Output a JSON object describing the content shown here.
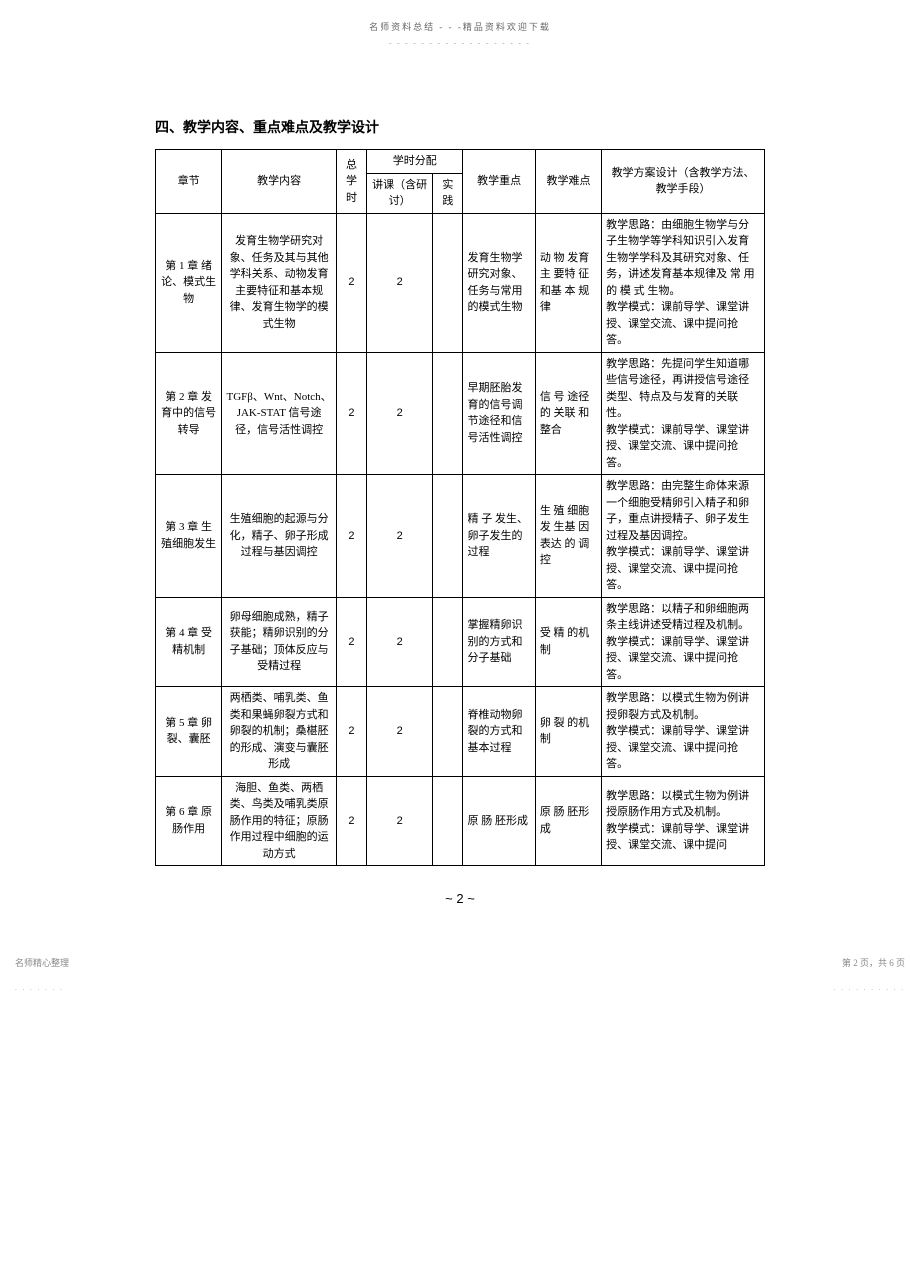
{
  "header": {
    "text": "名师资料总结 - - -精品资料欢迎下载",
    "dots": "- - - - - - - - - - - - - - - - - -"
  },
  "section_title": "四、教学内容、重点难点及教学设计",
  "table": {
    "headers": {
      "chapter": "章节",
      "content": "教学内容",
      "total_hours": "总学时",
      "hour_allocation": "学时分配",
      "lecture": "讲课（含研讨）",
      "practice": "实践",
      "focus": "教学重点",
      "difficulty": "教学难点",
      "design": "教学方案设计（含教学方法、教学手段）"
    },
    "rows": [
      {
        "chapter": "第 1 章 绪论、模式生物",
        "content": "发育生物学研究对象、任务及其与其他学科关系、动物发育主要特征和基本规律、发育生物学的模式生物",
        "total": "2",
        "lecture": "2",
        "practice": "",
        "focus": "发育生物学研究对象、任务与常用的模式生物",
        "difficulty": "动 物 发育 主 要特 征 和基 本 规律",
        "design": "教学思路：由细胞生物学与分子生物学等学科知识引入发育生物学学科及其研究对象、任务，讲述发育基本规律及 常 用 的 模 式 生物。\n教学模式：课前导学、课堂讲授、课堂交流、课中提问抢答。"
      },
      {
        "chapter": "第 2 章 发育中的信号转导",
        "content": "TGFβ、Wnt、Notch、JAK-STAT 信号途径，信号活性调控",
        "total": "2",
        "lecture": "2",
        "practice": "",
        "focus": "早期胚胎发育的信号调节途径和信号活性调控",
        "difficulty": "信 号 途径 的 关联 和 整合",
        "design": "教学思路：先提问学生知道哪些信号途径，再讲授信号途径类型、特点及与发育的关联性。\n教学模式：课前导学、课堂讲授、课堂交流、课中提问抢答。"
      },
      {
        "chapter": "第 3 章 生殖细胞发生",
        "content": "生殖细胞的起源与分化，精子、卵子形成过程与基因调控",
        "total": "2",
        "lecture": "2",
        "practice": "",
        "focus": "精 子 发生、卵子发生的过程",
        "difficulty": "生 殖 细胞 发 生基 因表达 的 调控",
        "design": "教学思路：由完整生命体来源一个细胞受精卵引入精子和卵子，重点讲授精子、卵子发生过程及基因调控。\n教学模式：课前导学、课堂讲授、课堂交流、课中提问抢答。"
      },
      {
        "chapter": "第 4 章 受精机制",
        "content": "卵母细胞成熟，精子获能；精卵识别的分子基础；顶体反应与受精过程",
        "total": "2",
        "lecture": "2",
        "practice": "",
        "focus": "掌握精卵识别的方式和分子基础",
        "difficulty": "受 精 的机制",
        "design": "教学思路：以精子和卵细胞两条主线讲述受精过程及机制。\n教学模式：课前导学、课堂讲授、课堂交流、课中提问抢答。"
      },
      {
        "chapter": "第 5 章 卵裂、囊胚",
        "content": "两栖类、哺乳类、鱼类和果蝇卵裂方式和卵裂的机制；桑椹胚的形成、演变与囊胚形成",
        "total": "2",
        "lecture": "2",
        "practice": "",
        "focus": "脊椎动物卵裂的方式和基本过程",
        "difficulty": "卵 裂 的机制",
        "design": "教学思路：以模式生物为例讲授卵裂方式及机制。\n教学模式：课前导学、课堂讲授、课堂交流、课中提问抢答。"
      },
      {
        "chapter": "第 6 章 原肠作用",
        "content": "海胆、鱼类、两栖类、鸟类及哺乳类原肠作用的特征；原肠作用过程中细胞的运动方式",
        "total": "2",
        "lecture": "2",
        "practice": "",
        "focus": "原 肠 胚形成",
        "difficulty": "原 肠 胚形成",
        "design": "教学思路：以模式生物为例讲授原肠作用方式及机制。\n教学模式：课前导学、课堂讲授、课堂交流、课中提问"
      }
    ]
  },
  "page_number": "~  2  ~",
  "footer": {
    "left": "名师精心整理",
    "right": "第 2 页，共 6 页",
    "dots_left": ". . . . . . .",
    "dots_right": ". . . . . . . . . ."
  }
}
